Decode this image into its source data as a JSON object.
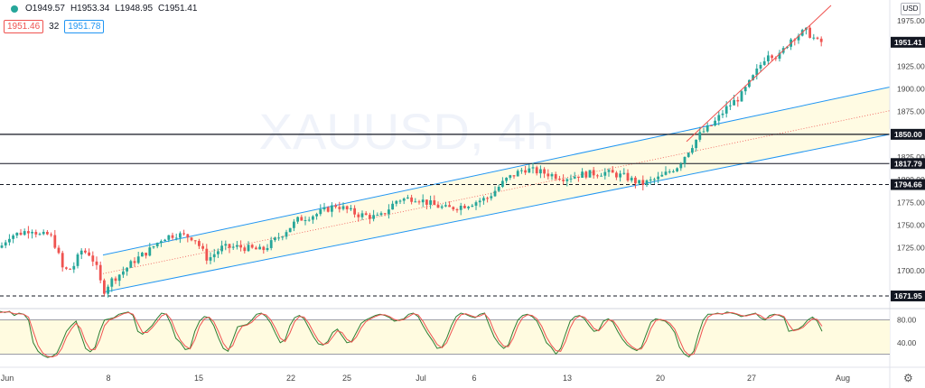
{
  "header": {
    "ohlc": [
      "O1949.57",
      "H1953.34",
      "L1948.95",
      "C1951.41"
    ],
    "ind_value": "32",
    "stoch_k_label": "1951.46",
    "stoch_d_label": "1951.78",
    "currency": "USD"
  },
  "watermark": "XAUUSD, 4h",
  "colors": {
    "up": "#26a69a",
    "down": "#ef5350",
    "channel": "#2196f3",
    "channel_fill": "#fffbe0",
    "stoch_k": "#2e7d32",
    "stoch_d": "#ef5350"
  },
  "chart_data": {
    "type": "candlestick",
    "symbol": "XAUUSD",
    "timeframe": "4h",
    "price_axis": {
      "ticks": [
        1975,
        1950,
        1925,
        1900,
        1875,
        1850,
        1825,
        1800,
        1775,
        1750,
        1725,
        1700,
        1675
      ],
      "ylim": [
        1660,
        1990
      ]
    },
    "x_ticks": [
      "Jun",
      "8",
      "15",
      "22",
      "25",
      "Jul",
      "6",
      "13",
      "20",
      "27",
      "Aug"
    ],
    "price_path": [
      {
        "x": 0,
        "price": 1725
      },
      {
        "x": 10,
        "price": 1738
      },
      {
        "x": 25,
        "price": 1742
      },
      {
        "x": 35,
        "price": 1746
      },
      {
        "x": 45,
        "price": 1738
      },
      {
        "x": 55,
        "price": 1740
      },
      {
        "x": 62,
        "price": 1726
      },
      {
        "x": 70,
        "price": 1700
      },
      {
        "x": 80,
        "price": 1702
      },
      {
        "x": 90,
        "price": 1722
      },
      {
        "x": 100,
        "price": 1718
      },
      {
        "x": 108,
        "price": 1700
      },
      {
        "x": 114,
        "price": 1676
      },
      {
        "x": 122,
        "price": 1688
      },
      {
        "x": 135,
        "price": 1698
      },
      {
        "x": 150,
        "price": 1712
      },
      {
        "x": 165,
        "price": 1722
      },
      {
        "x": 180,
        "price": 1736
      },
      {
        "x": 195,
        "price": 1740
      },
      {
        "x": 215,
        "price": 1736
      },
      {
        "x": 230,
        "price": 1712
      },
      {
        "x": 245,
        "price": 1725
      },
      {
        "x": 265,
        "price": 1726
      },
      {
        "x": 290,
        "price": 1722
      },
      {
        "x": 310,
        "price": 1738
      },
      {
        "x": 330,
        "price": 1756
      },
      {
        "x": 350,
        "price": 1762
      },
      {
        "x": 372,
        "price": 1772
      },
      {
        "x": 395,
        "price": 1762
      },
      {
        "x": 420,
        "price": 1758
      },
      {
        "x": 440,
        "price": 1778
      },
      {
        "x": 460,
        "price": 1780
      },
      {
        "x": 480,
        "price": 1772
      },
      {
        "x": 495,
        "price": 1768
      },
      {
        "x": 515,
        "price": 1772
      },
      {
        "x": 540,
        "price": 1780
      },
      {
        "x": 560,
        "price": 1800
      },
      {
        "x": 580,
        "price": 1812
      },
      {
        "x": 600,
        "price": 1808
      },
      {
        "x": 625,
        "price": 1802
      },
      {
        "x": 645,
        "price": 1806
      },
      {
        "x": 670,
        "price": 1808
      },
      {
        "x": 690,
        "price": 1804
      },
      {
        "x": 710,
        "price": 1795
      },
      {
        "x": 730,
        "price": 1802
      },
      {
        "x": 750,
        "price": 1815
      },
      {
        "x": 762,
        "price": 1832
      },
      {
        "x": 775,
        "price": 1850
      },
      {
        "x": 790,
        "price": 1862
      },
      {
        "x": 805,
        "price": 1880
      },
      {
        "x": 820,
        "price": 1892
      },
      {
        "x": 835,
        "price": 1915
      },
      {
        "x": 850,
        "price": 1940
      },
      {
        "x": 862,
        "price": 1935
      },
      {
        "x": 875,
        "price": 1955
      },
      {
        "x": 892,
        "price": 1964
      },
      {
        "x": 905,
        "price": 1952
      },
      {
        "x": 912,
        "price": 1951.41
      }
    ],
    "horizontal_levels": [
      {
        "price": 1951.41,
        "label": "1951.41",
        "style": "current"
      },
      {
        "price": 1850,
        "label": "1850.00",
        "style": "solid"
      },
      {
        "price": 1817.79,
        "label": "1817.79",
        "style": "solid"
      },
      {
        "price": 1794.66,
        "label": "1794.66",
        "style": "dashed"
      },
      {
        "price": 1671.95,
        "label": "1671.95",
        "style": "dashed"
      }
    ],
    "channel": {
      "lower": [
        {
          "x": 114,
          "price": 1676
        },
        {
          "x": 985,
          "price": 1850
        }
      ],
      "upper": [
        {
          "x": 114,
          "price": 1717
        },
        {
          "x": 985,
          "price": 1902
        }
      ]
    },
    "trendline": [
      {
        "x": 760,
        "price": 1842
      },
      {
        "x": 920,
        "price": 1992
      }
    ],
    "stochastic": {
      "ticks": [
        80,
        40
      ],
      "band": [
        20,
        80
      ],
      "k": [
        95,
        93,
        95,
        88,
        92,
        90,
        80,
        40,
        25,
        18,
        14,
        16,
        22,
        40,
        60,
        70,
        78,
        55,
        30,
        24,
        32,
        60,
        80,
        82,
        84,
        90,
        92,
        94,
        88,
        60,
        55,
        62,
        70,
        82,
        92,
        90,
        72,
        48,
        40,
        28,
        30,
        60,
        78,
        86,
        84,
        70,
        48,
        30,
        25,
        45,
        68,
        70,
        72,
        80,
        90,
        92,
        86,
        74,
        56,
        40,
        45,
        70,
        84,
        88,
        82,
        66,
        50,
        38,
        36,
        42,
        58,
        64,
        52,
        40,
        42,
        58,
        74,
        80,
        84,
        88,
        90,
        88,
        84,
        78,
        80,
        82,
        90,
        92,
        86,
        70,
        56,
        44,
        30,
        32,
        48,
        70,
        86,
        92,
        90,
        86,
        84,
        90,
        92,
        70,
        50,
        38,
        30,
        36,
        60,
        80,
        88,
        90,
        86,
        78,
        60,
        40,
        32,
        20,
        30,
        55,
        78,
        86,
        88,
        82,
        70,
        60,
        62,
        78,
        82,
        76,
        60,
        46,
        36,
        30,
        26,
        32,
        55,
        76,
        82,
        80,
        78,
        70,
        58,
        32,
        20,
        15,
        25,
        55,
        80,
        90,
        90,
        92,
        90,
        94,
        92,
        90,
        86,
        88,
        90,
        92,
        84,
        80,
        88,
        90,
        88,
        84,
        60,
        62,
        64,
        70,
        80,
        85,
        78,
        60
      ],
      "d": [
        93,
        94,
        94,
        91,
        91,
        90,
        85,
        60,
        35,
        22,
        16,
        15,
        18,
        30,
        50,
        64,
        74,
        65,
        42,
        28,
        28,
        45,
        70,
        80,
        83,
        87,
        91,
        93,
        90,
        74,
        58,
        58,
        66,
        76,
        87,
        91,
        81,
        60,
        44,
        34,
        29,
        45,
        69,
        82,
        85,
        77,
        59,
        39,
        28,
        35,
        56,
        69,
        71,
        76,
        85,
        91,
        89,
        80,
        65,
        48,
        42,
        57,
        77,
        86,
        85,
        74,
        58,
        44,
        37,
        39,
        50,
        61,
        58,
        46,
        41,
        50,
        66,
        77,
        82,
        86,
        89,
        89,
        86,
        81,
        79,
        81,
        86,
        91,
        89,
        78,
        63,
        50,
        37,
        31,
        40,
        59,
        78,
        89,
        91,
        88,
        85,
        87,
        91,
        81,
        60,
        44,
        34,
        33,
        48,
        70,
        84,
        89,
        88,
        82,
        69,
        50,
        36,
        26,
        25,
        42,
        66,
        82,
        87,
        85,
        76,
        65,
        61,
        70,
        80,
        79,
        68,
        53,
        41,
        33,
        28,
        29,
        43,
        65,
        79,
        81,
        79,
        74,
        64,
        45,
        26,
        18,
        20,
        40,
        67,
        85,
        90,
        91,
        91,
        92,
        93,
        91,
        88,
        87,
        89,
        91,
        88,
        82,
        84,
        89,
        89,
        86,
        72,
        61,
        63,
        67,
        75,
        82,
        81,
        69
      ]
    }
  }
}
